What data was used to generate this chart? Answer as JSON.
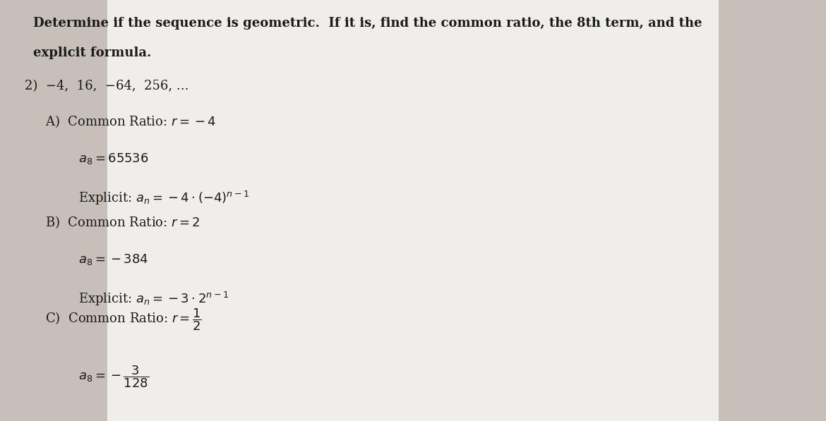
{
  "bg_color": "#c8c0b8",
  "paper_color": "#f0eeeb",
  "title_line1": "Determine if the sequence is geometric.  If it is, find the common ratio, the 8th term, and the",
  "title_line2": "explicit formula.",
  "problem": "2)  −4,  16,  −64,  256, ...",
  "text_color": "#1a1a1a",
  "font_size_title": 13,
  "font_size_body": 13
}
